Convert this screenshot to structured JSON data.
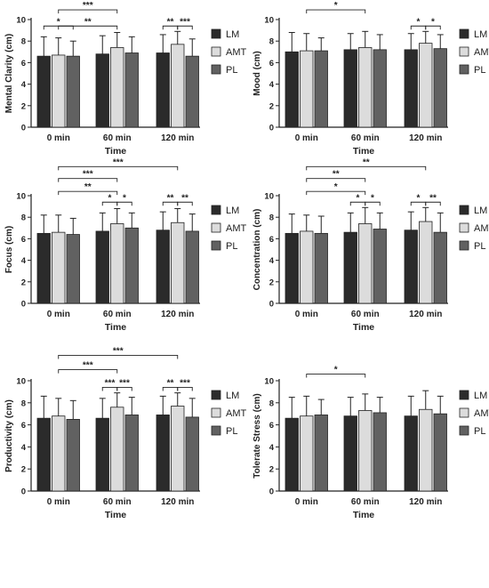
{
  "chart_data": [
    {
      "type": "bar",
      "ylabel": "Mental Clarity (cm)",
      "xlabel": "Time",
      "categories": [
        "0 min",
        "60 min",
        "120 min"
      ],
      "ylim": [
        0,
        10
      ],
      "yticks": [
        0,
        2,
        4,
        6,
        8,
        10
      ],
      "series": [
        {
          "name": "LM",
          "values": [
            6.6,
            6.8,
            6.9
          ],
          "errors": [
            1.8,
            1.7,
            1.7
          ]
        },
        {
          "name": "AMT",
          "values": [
            6.7,
            7.4,
            7.7
          ],
          "errors": [
            1.6,
            1.4,
            1.2
          ]
        },
        {
          "name": "PL",
          "values": [
            6.6,
            6.9,
            6.6
          ],
          "errors": [
            1.4,
            1.5,
            1.6
          ]
        }
      ],
      "brackets": [
        {
          "from": [
            1,
            0
          ],
          "to": [
            1,
            2
          ],
          "label": "*",
          "y": 9.4
        },
        {
          "from": [
            1,
            1
          ],
          "to": [
            2,
            1
          ],
          "label": "**",
          "y": 9.4
        },
        {
          "from": [
            3,
            0
          ],
          "to": [
            3,
            1
          ],
          "label": "**",
          "y": 9.4
        },
        {
          "from": [
            3,
            1
          ],
          "to": [
            3,
            2
          ],
          "label": "***",
          "y": 9.4
        },
        {
          "from": [
            1,
            1
          ],
          "to": [
            2,
            1
          ],
          "label": "***",
          "y": 10.9
        },
        {
          "from": [
            1,
            1
          ],
          "to": [
            3,
            1
          ],
          "label": "***",
          "y": 12.2
        }
      ]
    },
    {
      "type": "bar",
      "ylabel": "Mood (cm)",
      "xlabel": "Time",
      "categories": [
        "0 min",
        "60 min",
        "120 min"
      ],
      "ylim": [
        0,
        10
      ],
      "yticks": [
        0,
        2,
        4,
        6,
        8,
        10
      ],
      "series": [
        {
          "name": "LM",
          "values": [
            7.0,
            7.2,
            7.2
          ],
          "errors": [
            1.8,
            1.5,
            1.5
          ]
        },
        {
          "name": "AMT",
          "values": [
            7.1,
            7.4,
            7.8
          ],
          "errors": [
            1.6,
            1.5,
            1.1
          ]
        },
        {
          "name": "PL",
          "values": [
            7.1,
            7.2,
            7.3
          ],
          "errors": [
            1.2,
            1.4,
            1.3
          ]
        }
      ],
      "brackets": [
        {
          "from": [
            3,
            0
          ],
          "to": [
            3,
            1
          ],
          "label": "*",
          "y": 9.4
        },
        {
          "from": [
            3,
            1
          ],
          "to": [
            3,
            2
          ],
          "label": "*",
          "y": 9.4
        },
        {
          "from": [
            1,
            1
          ],
          "to": [
            2,
            1
          ],
          "label": "*",
          "y": 10.9
        },
        {
          "from": [
            1,
            1
          ],
          "to": [
            3,
            1
          ],
          "label": "*",
          "y": 12.3
        }
      ]
    },
    {
      "type": "bar",
      "ylabel": "Focus (cm)",
      "xlabel": "Time",
      "categories": [
        "0 min",
        "60 min",
        "120 min"
      ],
      "ylim": [
        0,
        10
      ],
      "yticks": [
        0,
        2,
        4,
        6,
        8,
        10
      ],
      "series": [
        {
          "name": "LM",
          "values": [
            6.5,
            6.7,
            6.8
          ],
          "errors": [
            1.7,
            1.7,
            1.7
          ]
        },
        {
          "name": "AMT",
          "values": [
            6.6,
            7.4,
            7.5
          ],
          "errors": [
            1.6,
            1.4,
            1.3
          ]
        },
        {
          "name": "PL",
          "values": [
            6.4,
            7.0,
            6.7
          ],
          "errors": [
            1.5,
            1.4,
            1.6
          ]
        }
      ],
      "brackets": [
        {
          "from": [
            2,
            0
          ],
          "to": [
            2,
            1
          ],
          "label": "*",
          "y": 9.4
        },
        {
          "from": [
            2,
            1
          ],
          "to": [
            2,
            2
          ],
          "label": "*",
          "y": 9.4
        },
        {
          "from": [
            3,
            0
          ],
          "to": [
            3,
            1
          ],
          "label": "**",
          "y": 9.4
        },
        {
          "from": [
            3,
            1
          ],
          "to": [
            3,
            2
          ],
          "label": "**",
          "y": 9.4
        },
        {
          "from": [
            1,
            1
          ],
          "to": [
            2,
            1
          ],
          "label": "**",
          "y": 10.4
        },
        {
          "from": [
            1,
            1
          ],
          "to": [
            2,
            1
          ],
          "label": "***",
          "y": 11.6
        },
        {
          "from": [
            1,
            1
          ],
          "to": [
            3,
            1
          ],
          "label": "***",
          "y": 12.7
        }
      ]
    },
    {
      "type": "bar",
      "ylabel": "Concentration (cm)",
      "xlabel": "Time",
      "categories": [
        "0 min",
        "60 min",
        "120 min"
      ],
      "ylim": [
        0,
        10
      ],
      "yticks": [
        0,
        2,
        4,
        6,
        8,
        10
      ],
      "series": [
        {
          "name": "LM",
          "values": [
            6.5,
            6.6,
            6.8
          ],
          "errors": [
            1.8,
            1.8,
            1.7
          ]
        },
        {
          "name": "AMT",
          "values": [
            6.7,
            7.4,
            7.6
          ],
          "errors": [
            1.5,
            1.5,
            1.3
          ]
        },
        {
          "name": "PL",
          "values": [
            6.5,
            6.9,
            6.6
          ],
          "errors": [
            1.6,
            1.5,
            1.8
          ]
        }
      ],
      "brackets": [
        {
          "from": [
            2,
            0
          ],
          "to": [
            2,
            1
          ],
          "label": "*",
          "y": 9.4
        },
        {
          "from": [
            2,
            1
          ],
          "to": [
            2,
            2
          ],
          "label": "*",
          "y": 9.4
        },
        {
          "from": [
            3,
            0
          ],
          "to": [
            3,
            1
          ],
          "label": "*",
          "y": 9.4
        },
        {
          "from": [
            3,
            1
          ],
          "to": [
            3,
            2
          ],
          "label": "**",
          "y": 9.4
        },
        {
          "from": [
            1,
            1
          ],
          "to": [
            2,
            1
          ],
          "label": "*",
          "y": 10.4
        },
        {
          "from": [
            1,
            1
          ],
          "to": [
            2,
            1
          ],
          "label": "**",
          "y": 11.6
        },
        {
          "from": [
            1,
            1
          ],
          "to": [
            3,
            1
          ],
          "label": "**",
          "y": 12.7
        }
      ]
    },
    {
      "type": "bar",
      "ylabel": "Productivity (cm)",
      "xlabel": "Time",
      "categories": [
        "0 min",
        "60 min",
        "120 min"
      ],
      "ylim": [
        0,
        10
      ],
      "yticks": [
        0,
        2,
        4,
        6,
        8,
        10
      ],
      "series": [
        {
          "name": "LM",
          "values": [
            6.6,
            6.6,
            6.9
          ],
          "errors": [
            2.0,
            1.8,
            1.7
          ]
        },
        {
          "name": "AMT",
          "values": [
            6.8,
            7.6,
            7.7
          ],
          "errors": [
            1.6,
            1.3,
            1.2
          ]
        },
        {
          "name": "PL",
          "values": [
            6.5,
            6.9,
            6.7
          ],
          "errors": [
            1.7,
            1.6,
            1.7
          ]
        }
      ],
      "brackets": [
        {
          "from": [
            2,
            0
          ],
          "to": [
            2,
            1
          ],
          "label": "***",
          "y": 9.4
        },
        {
          "from": [
            2,
            1
          ],
          "to": [
            2,
            2
          ],
          "label": "***",
          "y": 9.4
        },
        {
          "from": [
            3,
            0
          ],
          "to": [
            3,
            1
          ],
          "label": "**",
          "y": 9.4
        },
        {
          "from": [
            3,
            1
          ],
          "to": [
            3,
            2
          ],
          "label": "***",
          "y": 9.4
        },
        {
          "from": [
            1,
            1
          ],
          "to": [
            2,
            1
          ],
          "label": "***",
          "y": 11.0
        },
        {
          "from": [
            1,
            1
          ],
          "to": [
            3,
            1
          ],
          "label": "***",
          "y": 12.3
        }
      ]
    },
    {
      "type": "bar",
      "ylabel": "Tolerate Stress (cm)",
      "xlabel": "Time",
      "categories": [
        "0 min",
        "60 min",
        "120 min"
      ],
      "ylim": [
        0,
        10
      ],
      "yticks": [
        0,
        2,
        4,
        6,
        8,
        10
      ],
      "series": [
        {
          "name": "LM",
          "values": [
            6.6,
            6.8,
            6.8
          ],
          "errors": [
            1.9,
            1.7,
            1.8
          ]
        },
        {
          "name": "AMT",
          "values": [
            6.8,
            7.3,
            7.4
          ],
          "errors": [
            1.8,
            1.5,
            1.7
          ]
        },
        {
          "name": "PL",
          "values": [
            6.9,
            7.1,
            7.0
          ],
          "errors": [
            1.4,
            1.4,
            1.6
          ]
        }
      ],
      "brackets": [
        {
          "from": [
            1,
            1
          ],
          "to": [
            2,
            1
          ],
          "label": "*",
          "y": 10.6
        }
      ]
    }
  ],
  "legend": [
    {
      "name": "LM",
      "color": "#2b2b2b"
    },
    {
      "name": "AMT",
      "color": "#dcdcdc"
    },
    {
      "name": "PL",
      "color": "#616161"
    }
  ]
}
